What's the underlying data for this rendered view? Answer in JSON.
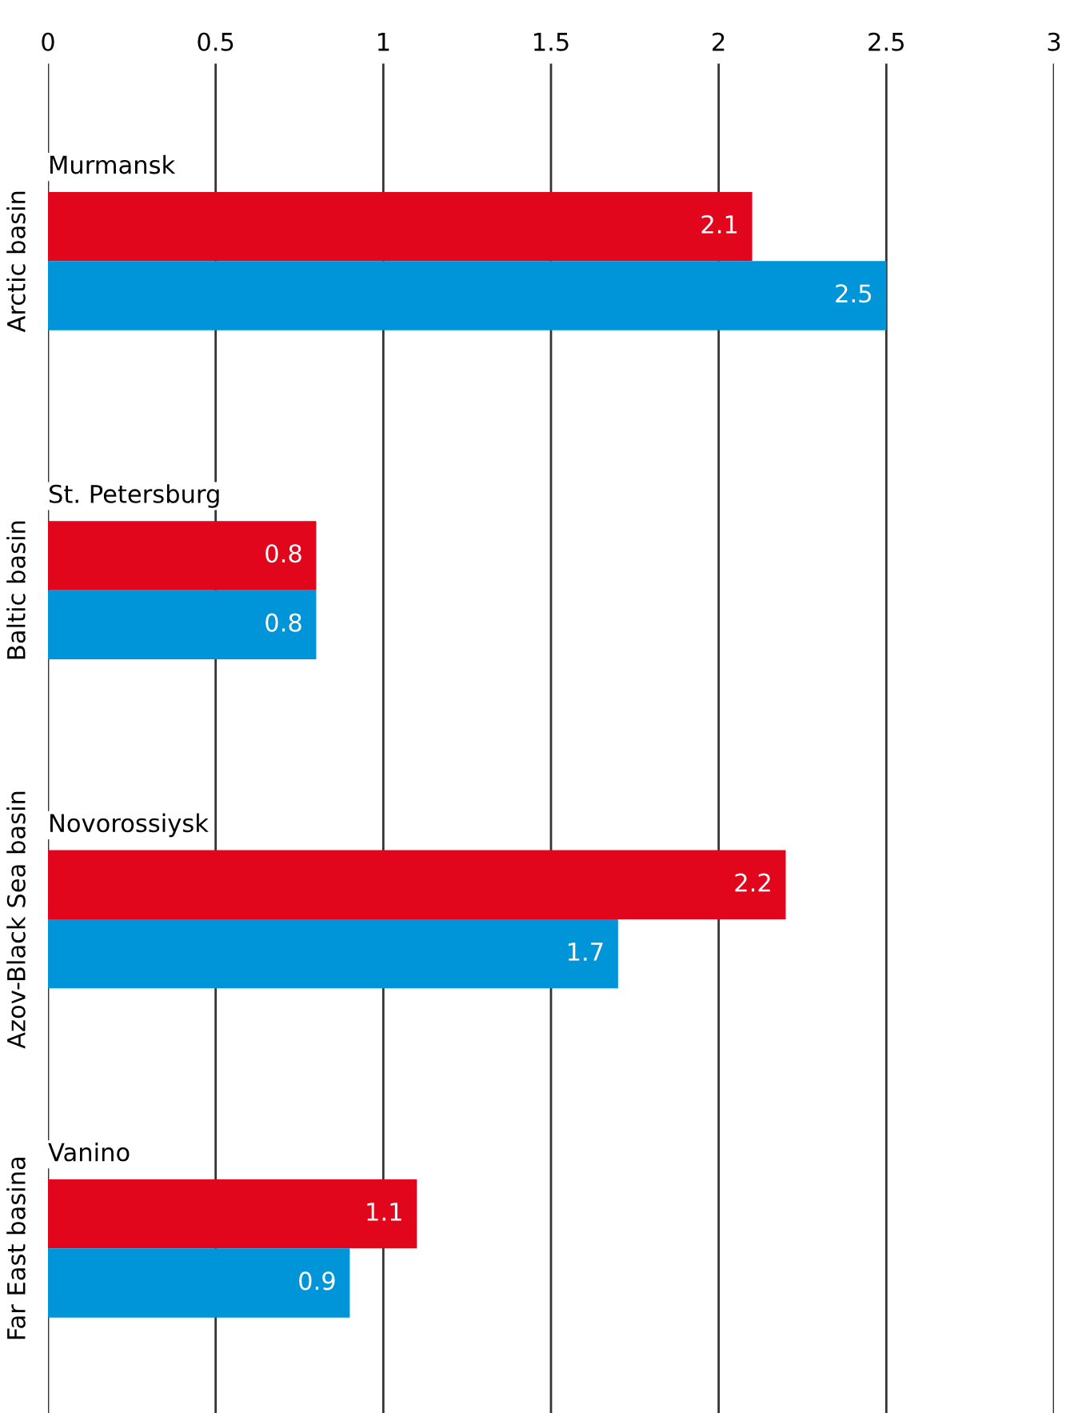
{
  "chart_data": {
    "type": "bar",
    "orientation": "horizontal",
    "categories": [
      "Arctic basin",
      "Baltic basin",
      "Azov-Black Sea basin",
      "Far East basina"
    ],
    "series": [
      {
        "color": "#e2061d",
        "values": [
          2.1,
          0.8,
          2.2,
          1.1
        ]
      },
      {
        "color": "#0094d9",
        "values": [
          2.5,
          0.8,
          1.7,
          0.9
        ]
      }
    ],
    "xlim": [
      0,
      3
    ],
    "xticks": [
      0,
      0.5,
      1,
      1.5,
      2,
      2.5,
      3
    ],
    "grid": "x",
    "data_labels": true,
    "legend": false,
    "annotations": [
      "Murmansk",
      "St. Petersburg",
      "Novorossiysk",
      "Vanino"
    ]
  }
}
